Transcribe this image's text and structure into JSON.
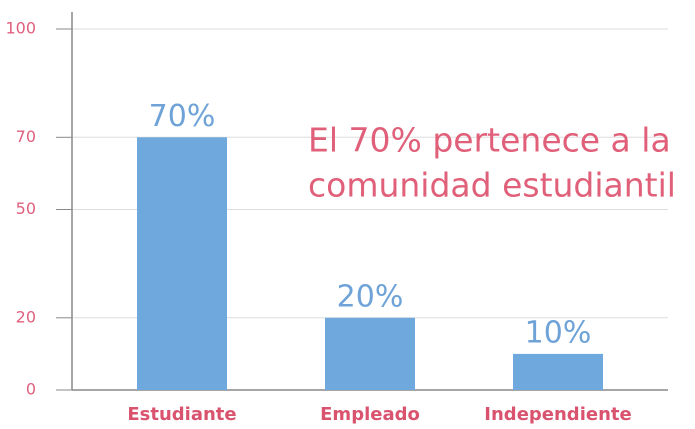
{
  "chart_data": {
    "type": "bar",
    "categories": [
      "Estudiante",
      "Empleado",
      "Independiente"
    ],
    "values": [
      70,
      20,
      10
    ],
    "value_labels": [
      "70%",
      "20%",
      "10%"
    ],
    "color": "#6fa8dc",
    "ylim": [
      0,
      100
    ],
    "yticks": [
      0,
      20,
      50,
      70,
      100
    ],
    "grid": true,
    "annotation": [
      "El 70% pertenece a la",
      "comunidad estudiantil"
    ]
  }
}
